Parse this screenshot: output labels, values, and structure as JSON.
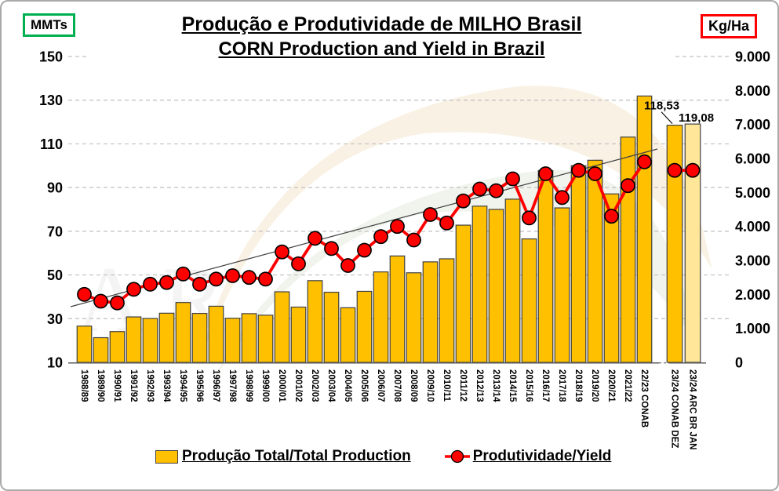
{
  "header": {
    "left_axis_unit": "MMTs",
    "right_axis_unit": "Kg/Ha",
    "title_line1": "Produção e Produtividade de MILHO Brasil",
    "title_line2": "CORN Production and Yield in Brazil"
  },
  "legend": {
    "production_label": "Produção Total/Total Production",
    "yield_label": "Produtividade/Yield"
  },
  "colors": {
    "bar_fill": "#FFC000",
    "bar_fill_last_estimate": "#FFE699",
    "bar_stroke": "#404040",
    "yield_line": "#FF0000",
    "yield_dot_fill": "#FF0000",
    "yield_dot_stroke": "#000000",
    "left_unit_box_border": "#00B050",
    "right_unit_box_border": "#FF0000",
    "gridline": "#BFBFBF",
    "trendline": "#404040",
    "axis_line": "#595959"
  },
  "chart_data": {
    "type": "bar+line dual-axis combo",
    "title": "Produção e Produtividade de MILHO Brasil / CORN Production and Yield in Brazil",
    "grid": "horizontal dashed, left-axis ticks",
    "legend_position": "bottom",
    "categories": [
      "1988/89",
      "1989/90",
      "1990/91",
      "1991/92",
      "1992/93",
      "1993/94",
      "1994/95",
      "1995/96",
      "1996/97",
      "1997/98",
      "1998/99",
      "1999/00",
      "2000/01",
      "2001/02",
      "2002/03",
      "2003/04",
      "2004/05",
      "2005/06",
      "2006/07",
      "2007/08",
      "2008/09",
      "2009/10",
      "2010/11",
      "2011/12",
      "2012/13",
      "2013/14",
      "2014/15",
      "2015/16",
      "2016/17",
      "2017/18",
      "2018/19",
      "2019/20",
      "2020/21",
      "2021/22",
      "22/23 CONAB",
      "23/24 CONAB DEZ",
      "23/24 ARC BR JAN"
    ],
    "series": [
      {
        "name": "Produção Total/Total Production",
        "type": "bar",
        "axis": "left",
        "unit": "MMTs",
        "values": [
          26.6,
          21.3,
          24.1,
          30.8,
          30.1,
          32.5,
          37.4,
          32.4,
          35.7,
          30.2,
          32.3,
          31.6,
          42.3,
          35.3,
          47.4,
          42.1,
          35.0,
          42.5,
          51.4,
          58.7,
          51.0,
          56.0,
          57.4,
          72.8,
          81.5,
          80.0,
          84.7,
          66.5,
          97.8,
          80.7,
          100.0,
          102.5,
          87.1,
          113.1,
          131.9,
          118.53,
          119.08
        ]
      },
      {
        "name": "Produtividade/Yield",
        "type": "line",
        "axis": "right",
        "unit": "Kg/Ha",
        "values": [
          2000,
          1800,
          1750,
          2150,
          2300,
          2350,
          2600,
          2300,
          2450,
          2550,
          2500,
          2450,
          3250,
          2900,
          3650,
          3350,
          2850,
          3300,
          3700,
          4000,
          3600,
          4350,
          4100,
          4750,
          5100,
          5050,
          5400,
          4250,
          5550,
          4850,
          5650,
          5550,
          4300,
          5200,
          5900,
          5650,
          5650
        ]
      }
    ],
    "left_axis": {
      "label": "MMTs",
      "min": 10,
      "max": 150,
      "tick_labels": [
        "150",
        "130",
        "110",
        "90",
        "70",
        "50",
        "30",
        "10"
      ],
      "tick_values": [
        150,
        130,
        110,
        90,
        70,
        50,
        30,
        10
      ]
    },
    "right_axis": {
      "label": "Kg/Ha",
      "min": 0,
      "max": 9000,
      "tick_labels": [
        "9.000",
        "8.000",
        "7.000",
        "6.000",
        "5.000",
        "4.000",
        "3.000",
        "2.000",
        "1.000",
        "0"
      ],
      "tick_values": [
        9000,
        8000,
        7000,
        6000,
        5000,
        4000,
        3000,
        2000,
        1000,
        0
      ]
    },
    "annotations": [
      {
        "text": "118,53",
        "category": "23/24 CONAB DEZ",
        "value": 118.53,
        "pointer_line": true
      },
      {
        "text": "119,08",
        "category": "23/24 ARC BR JAN",
        "value": 119.08,
        "pointer_line": false
      }
    ],
    "trendline": {
      "present": true,
      "note": "thin linear trend through yield points"
    },
    "last_bar_lighter_fill": true,
    "gap_before_category_index": 35
  }
}
